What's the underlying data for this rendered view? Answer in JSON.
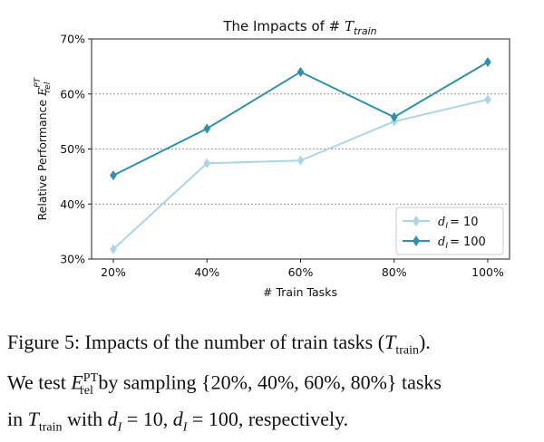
{
  "chart_data": {
    "type": "line",
    "title": "The Impacts of # T_train",
    "title_prefix": "The Impacts of # ",
    "title_symbol": "T",
    "title_subscript": "train",
    "xlabel": "# Train Tasks",
    "ylabel_prefix": "Relative Performance ",
    "ylabel_symbol": "E",
    "ylabel_superscript": "PT",
    "ylabel_subscript": "rel",
    "categories": [
      "20%",
      "40%",
      "60%",
      "80%",
      "100%"
    ],
    "yticks": [
      30,
      40,
      50,
      60,
      70
    ],
    "ytick_labels": [
      "30%",
      "40%",
      "50%",
      "60%",
      "70%"
    ],
    "ylim": [
      30,
      70
    ],
    "grid": "horizontal dotted",
    "legend_position": "lower-right",
    "series": [
      {
        "name": "d_I = 10",
        "legend_var": "d",
        "legend_sub": "I",
        "legend_value": "= 10",
        "values": [
          31.8,
          47.4,
          47.9,
          55.0,
          59.0
        ],
        "color": "#a9d6e5"
      },
      {
        "name": "d_I = 100",
        "legend_var": "d",
        "legend_sub": "I",
        "legend_value": "= 100",
        "values": [
          45.2,
          53.7,
          64.0,
          55.8,
          65.8
        ],
        "color": "#2e90ad"
      }
    ]
  },
  "caption": {
    "line1_start": "Figure 5: Impacts of the number of train tasks (",
    "t_symbol": "T",
    "t_sub": "train",
    "line1_end": ").",
    "line2_start": "We test ",
    "e_symbol": "E",
    "e_sup": "PT",
    "e_sub": "rel",
    "line2_end": " by sampling {20%, 40%, 60%, 80%} tasks",
    "line3_start": "in ",
    "line3_with": " with ",
    "d_symbol": "d",
    "d_sub": "I",
    "eq_10": " = 10, ",
    "eq_100": " = 100, respectively."
  }
}
